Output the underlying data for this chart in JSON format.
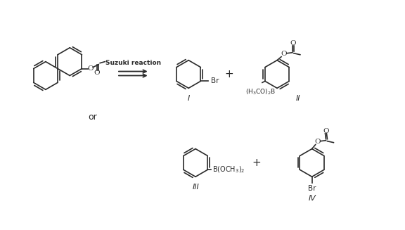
{
  "background_color": "#ffffff",
  "line_color": "#2a2a2a",
  "figsize": [
    5.76,
    3.27
  ],
  "dpi": 100,
  "suzuki_label": "Suzuki reaction",
  "label_I": "I",
  "label_II": "II",
  "label_III": "III",
  "label_IV": "IV",
  "label_or": "or",
  "label_Br1": "Br",
  "label_Br2": "Br",
  "label_H3CO2B": "(H$_3$CO)$_2$B",
  "label_BOCH3_2": "B(OCH$_3$)$_2$",
  "label_O": "O"
}
